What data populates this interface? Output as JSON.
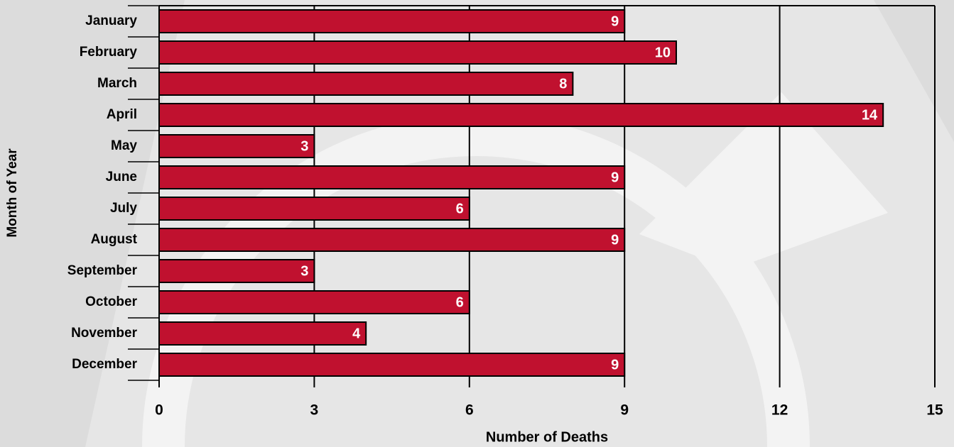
{
  "chart_data": {
    "type": "barh",
    "categories": [
      "January",
      "February",
      "March",
      "April",
      "May",
      "June",
      "July",
      "August",
      "September",
      "October",
      "November",
      "December"
    ],
    "values": [
      9,
      10,
      8,
      14,
      3,
      9,
      6,
      9,
      3,
      6,
      4,
      9
    ],
    "color": "#c0112f",
    "xlabel": "Number of Deaths",
    "ylabel": "Month of Year",
    "xlim": [
      0,
      15
    ],
    "xticks": [
      0,
      3,
      6,
      9,
      12,
      15
    ],
    "grid": true
  }
}
